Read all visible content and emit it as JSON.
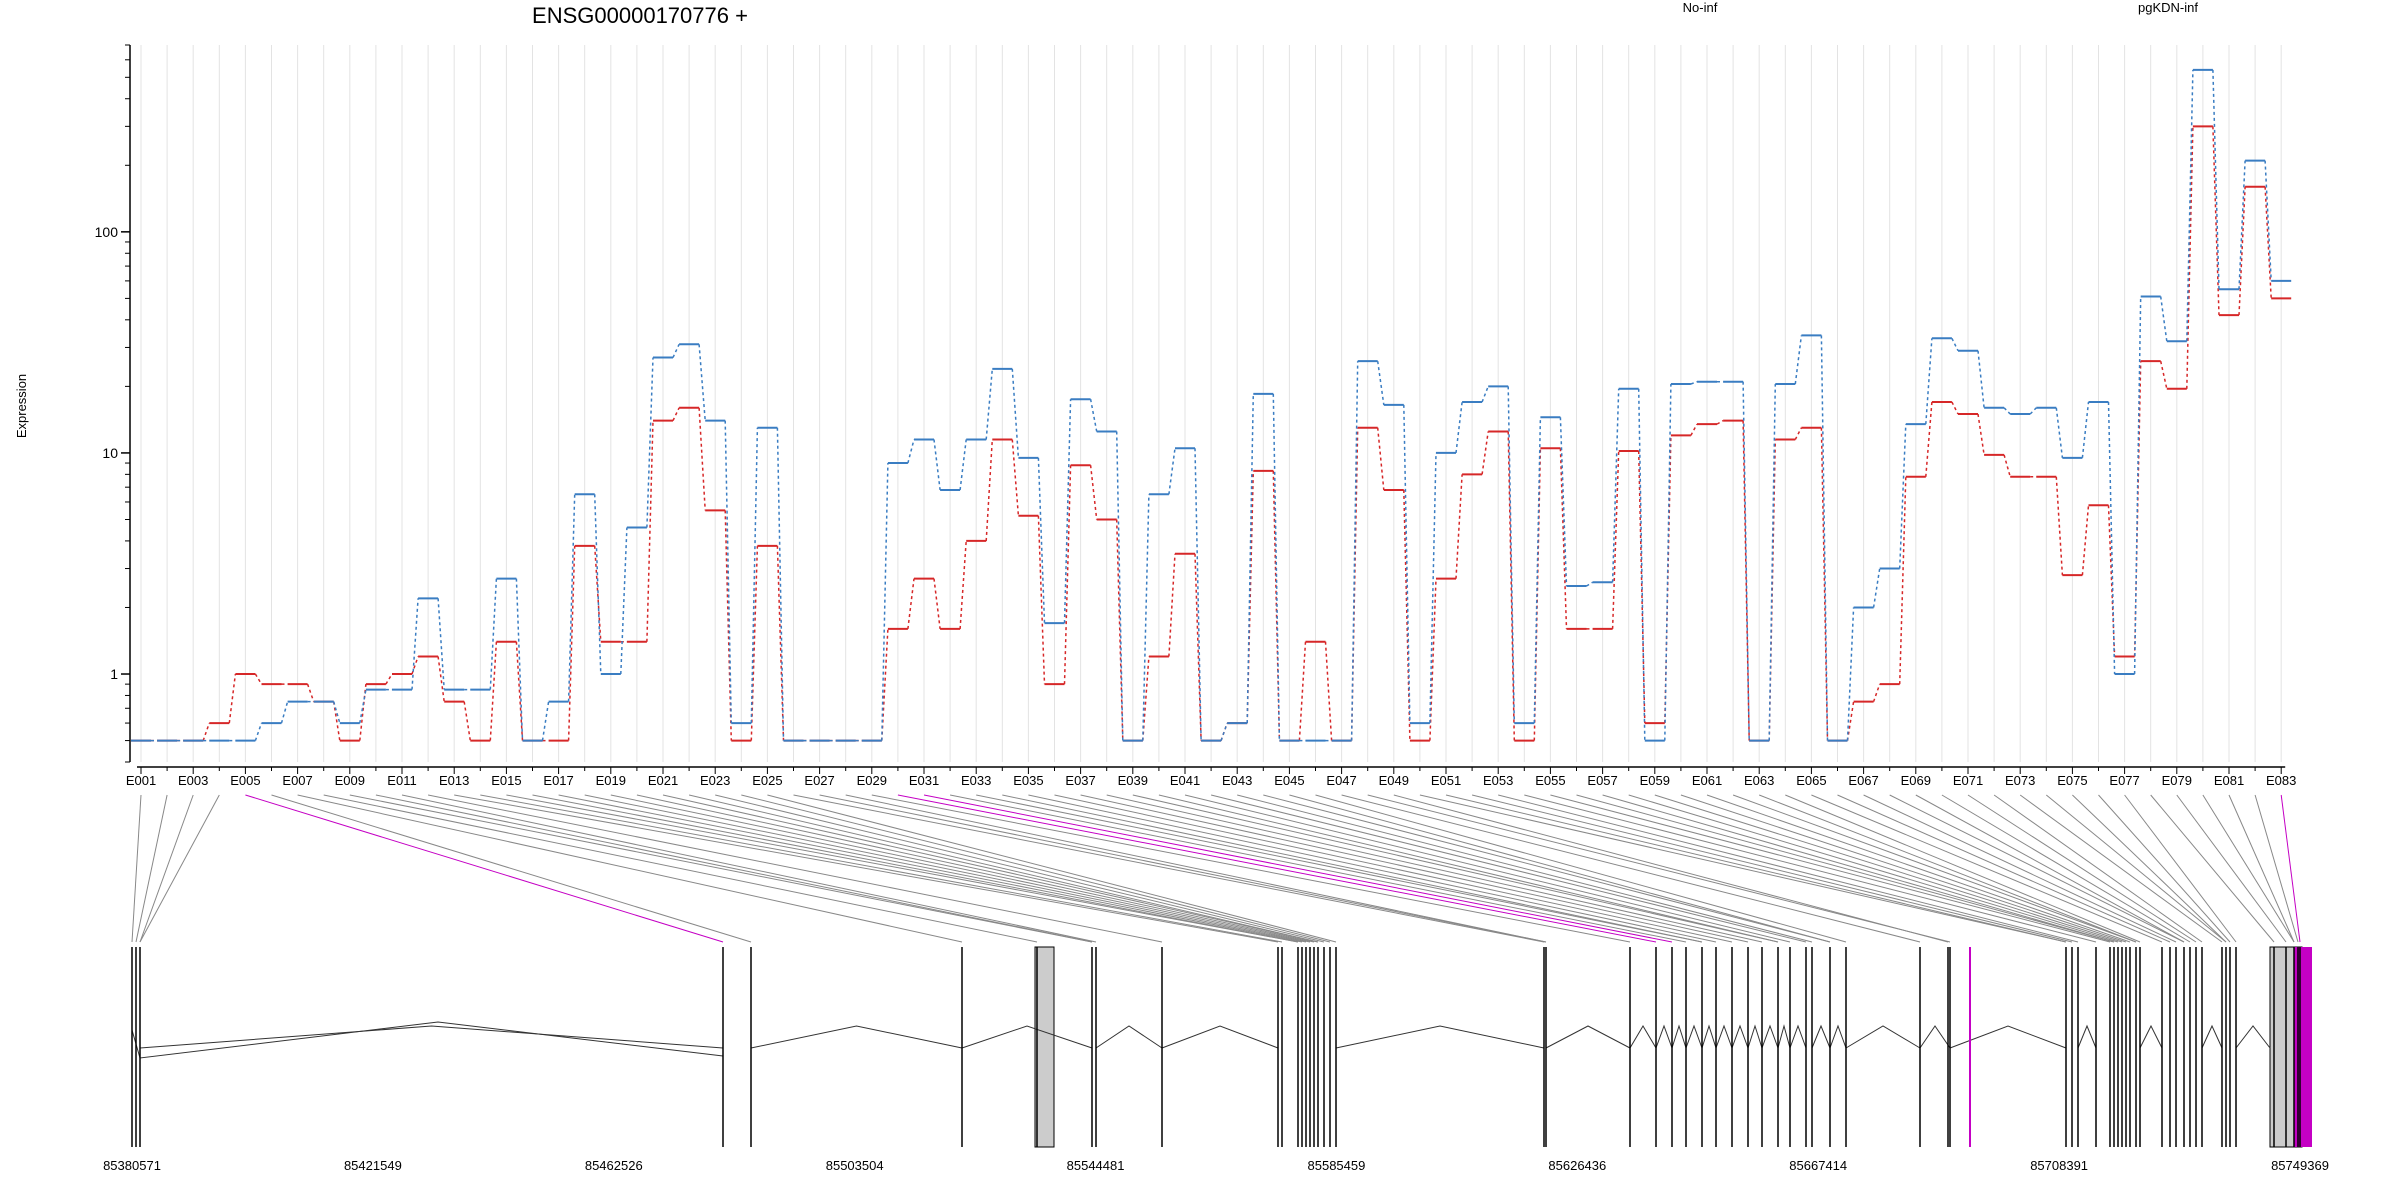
{
  "title": "ENSG00000170776 +",
  "ylabel": "Expression",
  "legend": {
    "items": [
      {
        "name": "No-inf",
        "color": "#d62728"
      },
      {
        "name": "pgKDN-inf",
        "color": "#3a7dc2"
      }
    ]
  },
  "colors": {
    "highlight": "#c400c4",
    "exon_fill": "#cccccc"
  },
  "chart_data": {
    "type": "line",
    "scale": "log",
    "ylim": [
      0.4,
      700
    ],
    "yticks": [
      1,
      10,
      100
    ],
    "ytick_labels": [
      "1",
      "10",
      "100"
    ],
    "categories": [
      "E001",
      "E002",
      "E003",
      "E004",
      "E005",
      "E006",
      "E007",
      "E008",
      "E009",
      "E010",
      "E011",
      "E012",
      "E013",
      "E014",
      "E015",
      "E016",
      "E017",
      "E018",
      "E019",
      "E020",
      "E021",
      "E022",
      "E023",
      "E024",
      "E025",
      "E026",
      "E027",
      "E028",
      "E029",
      "E030",
      "E031",
      "E032",
      "E033",
      "E034",
      "E035",
      "E036",
      "E037",
      "E038",
      "E039",
      "E040",
      "E041",
      "E042",
      "E043",
      "E044",
      "E045",
      "E046",
      "E047",
      "E048",
      "E049",
      "E050",
      "E051",
      "E052",
      "E053",
      "E054",
      "E055",
      "E056",
      "E057",
      "E058",
      "E059",
      "E060",
      "E061",
      "E062",
      "E063",
      "E064",
      "E065",
      "E066",
      "E067",
      "E068",
      "E069",
      "E070",
      "E071",
      "E072",
      "E073",
      "E074",
      "E075",
      "E076",
      "E077",
      "E078",
      "E079",
      "E080",
      "E081",
      "E082",
      "E083"
    ],
    "xtick_labels": [
      "E001",
      "E003",
      "E005",
      "E007",
      "E009",
      "E011",
      "E013",
      "E015",
      "E017",
      "E019",
      "E021",
      "E023",
      "E025",
      "E027",
      "E029",
      "E031",
      "E033",
      "E035",
      "E037",
      "E039",
      "E041",
      "E043",
      "E045",
      "E047",
      "E049",
      "E051",
      "E053",
      "E055",
      "E057",
      "E059",
      "E061",
      "E063",
      "E065",
      "E067",
      "E069",
      "E071",
      "E073",
      "E075",
      "E077",
      "E079",
      "E081",
      "E083"
    ],
    "highlight_exons": [
      "E005",
      "E030",
      "E031",
      "E083"
    ],
    "series": [
      {
        "name": "No-inf",
        "color": "#d62728",
        "values": [
          0.5,
          0.5,
          0.5,
          0.6,
          1.0,
          0.9,
          0.9,
          0.75,
          0.5,
          0.9,
          1.0,
          1.2,
          0.75,
          0.5,
          1.4,
          0.5,
          0.5,
          3.8,
          1.4,
          1.4,
          14,
          16,
          5.5,
          0.5,
          3.8,
          0.5,
          0.5,
          0.5,
          0.5,
          1.6,
          2.7,
          1.6,
          4,
          11.5,
          5.2,
          0.9,
          8.8,
          5,
          0.5,
          1.2,
          3.5,
          0.5,
          0.6,
          8.3,
          0.5,
          1.4,
          0.5,
          13,
          6.8,
          0.5,
          2.7,
          8,
          12.5,
          0.5,
          10.5,
          1.6,
          1.6,
          10.2,
          0.6,
          12,
          13.5,
          14,
          0.5,
          11.5,
          13,
          0.5,
          0.75,
          0.9,
          7.8,
          17,
          15,
          9.8,
          7.8,
          7.8,
          2.8,
          5.8,
          1.2,
          26,
          19.5,
          300,
          42,
          160,
          50
        ]
      },
      {
        "name": "pgKDN-inf",
        "color": "#3a7dc2",
        "values": [
          0.5,
          0.5,
          0.5,
          0.5,
          0.5,
          0.6,
          0.75,
          0.75,
          0.6,
          0.85,
          0.85,
          2.2,
          0.85,
          0.85,
          2.7,
          0.5,
          0.75,
          6.5,
          1.0,
          4.6,
          27,
          31,
          14,
          0.6,
          13,
          0.5,
          0.5,
          0.5,
          0.5,
          9,
          11.5,
          6.8,
          11.5,
          24,
          9.5,
          1.7,
          17.5,
          12.5,
          0.5,
          6.5,
          10.5,
          0.5,
          0.6,
          18.5,
          0.5,
          0.5,
          0.5,
          26,
          16.5,
          0.6,
          10,
          17,
          20,
          0.6,
          14.5,
          2.5,
          2.6,
          19.5,
          0.5,
          20.5,
          21,
          21,
          0.5,
          20.5,
          34,
          0.5,
          2.0,
          3,
          13.5,
          33,
          29,
          16,
          15,
          16,
          9.5,
          17,
          1.0,
          51,
          32,
          540,
          55,
          210,
          60
        ]
      }
    ],
    "genomic_ticks": [
      "85380571",
      "85421549",
      "85462526",
      "85503504",
      "85544481",
      "85585459",
      "85626436",
      "85667414",
      "85708391",
      "85749369"
    ]
  }
}
